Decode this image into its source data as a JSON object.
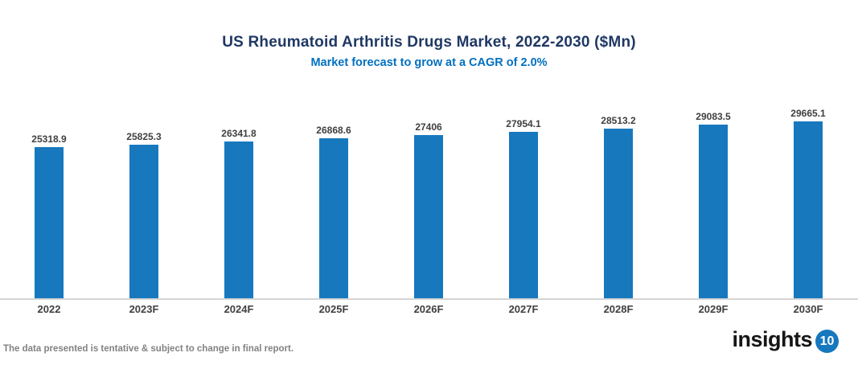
{
  "chart": {
    "title": "US Rheumatoid Arthritis Drugs Market, 2022-2030 ($Mn)",
    "subtitle": "Market forecast to grow at a CAGR of 2.0%"
  },
  "chart_data": {
    "type": "bar",
    "categories": [
      "2022",
      "2023F",
      "2024F",
      "2025F",
      "2026F",
      "2027F",
      "2028F",
      "2029F",
      "2030F"
    ],
    "values": [
      25318.9,
      25825.3,
      26341.8,
      26868.6,
      27406,
      27954.1,
      28513.2,
      29083.5,
      29665.1
    ],
    "value_labels": [
      "25318.9",
      "25825.3",
      "26341.8",
      "26868.6",
      "27406",
      "27954.1",
      "28513.2",
      "29083.5",
      "29665.1"
    ],
    "title": "US Rheumatoid Arthritis Drugs Market, 2022-2030 ($Mn)",
    "subtitle": "Market forecast to grow at a CAGR of 2.0%",
    "xlabel": "",
    "ylabel": "",
    "ylim": [
      0,
      30000
    ],
    "grid": false,
    "legend": false,
    "data_labels": true,
    "bar_color": "#1778BE"
  },
  "footer": {
    "note": "The data presented is tentative & subject to change in final report."
  },
  "logo": {
    "text": "insights",
    "badge": "10",
    "badge_color": "#1778BE"
  },
  "colors": {
    "title": "#1F3864",
    "subtitle": "#0070C0",
    "bar": "#1778BE",
    "axis_line": "#D5D5D5",
    "label": "#3F3F3F",
    "footer": "#828282"
  }
}
